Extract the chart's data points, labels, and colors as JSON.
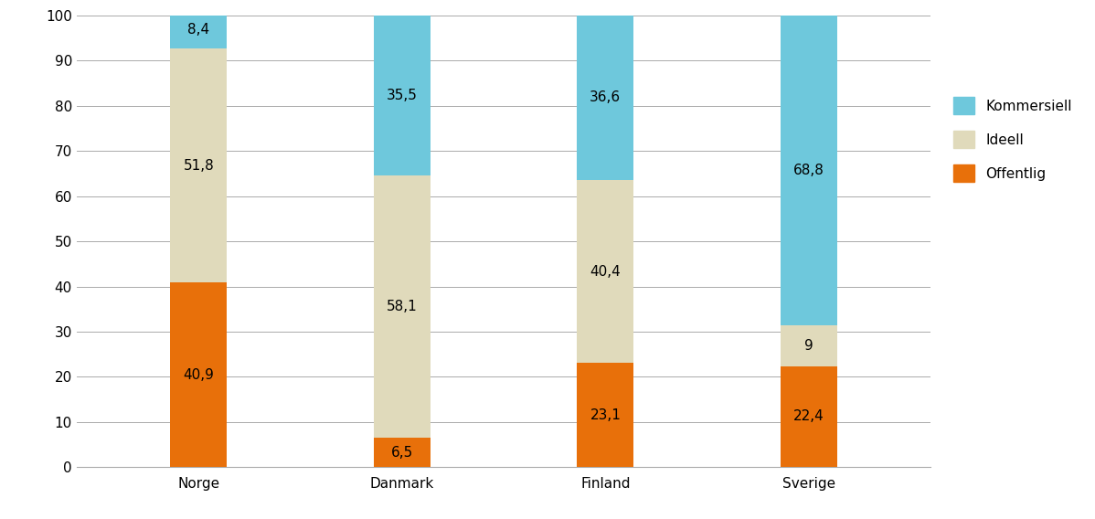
{
  "categories": [
    "Norge",
    "Danmark",
    "Finland",
    "Sverige"
  ],
  "offentlig": [
    40.9,
    6.5,
    23.1,
    22.4
  ],
  "ideell": [
    51.8,
    58.1,
    40.4,
    9.0
  ],
  "kommersiell": [
    8.4,
    35.5,
    36.6,
    68.8
  ],
  "color_offentlig": "#E8700A",
  "color_ideell": "#E0DABB",
  "color_kommersiell": "#6EC8DC",
  "ylabel": "",
  "ylim": [
    0,
    100
  ],
  "yticks": [
    0,
    10,
    20,
    30,
    40,
    50,
    60,
    70,
    80,
    90,
    100
  ],
  "bar_width": 0.28,
  "background_color": "#ffffff",
  "grid_color": "#aaaaaa",
  "label_fontsize": 11,
  "tick_fontsize": 11,
  "legend_fontsize": 11,
  "ideell_label_format": [
    "51,8",
    "58,1",
    "40,4",
    "9"
  ],
  "offentlig_label_format": [
    "40,9",
    "6,5",
    "23,1",
    "22,4"
  ],
  "kommersiell_label_format": [
    "8,4",
    "35,5",
    "36,6",
    "68,8"
  ]
}
